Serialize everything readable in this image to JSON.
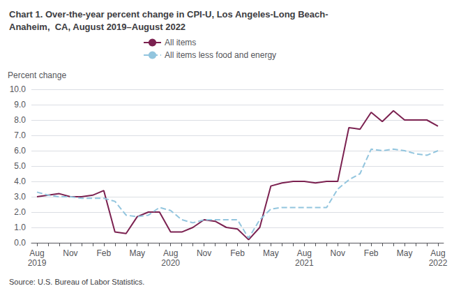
{
  "chart_data": {
    "type": "line",
    "title": "Chart 1. Over-the-year percent change in CPI-U, Los Angeles-Long Beach-\nAnaheim,  CA, August 2019–August 2022",
    "ylabel": "Percent change",
    "annotations": [
      "Source: U.S. Bureau of Labor Statistics."
    ],
    "categories": [
      "Aug\n2019",
      null,
      null,
      "Nov",
      null,
      null,
      "Feb",
      null,
      null,
      "May",
      null,
      null,
      "Aug\n2020",
      null,
      null,
      "Nov",
      null,
      null,
      "Feb",
      null,
      null,
      "May",
      null,
      null,
      "Aug\n2021",
      null,
      null,
      "Nov",
      null,
      null,
      "Feb",
      null,
      null,
      "May",
      null,
      null,
      "Aug\n2022"
    ],
    "series": [
      {
        "name": "All items",
        "color": "#7B2150",
        "line_style": "solid",
        "values": [
          3.0,
          3.1,
          3.2,
          3.0,
          3.0,
          3.1,
          3.4,
          0.7,
          0.6,
          1.7,
          2.0,
          2.0,
          0.7,
          0.7,
          1.0,
          1.5,
          1.4,
          1.0,
          0.9,
          0.2,
          1.0,
          3.7,
          3.9,
          4.0,
          4.0,
          3.9,
          4.0,
          4.0,
          7.5,
          7.4,
          8.5,
          7.9,
          8.6,
          8.0,
          8.0,
          8.0,
          7.6
        ]
      },
      {
        "name": "All items less food and energy",
        "color": "#92C5DE",
        "line_style": "dashed",
        "values": [
          3.3,
          3.1,
          3.0,
          3.0,
          2.9,
          2.9,
          2.9,
          2.7,
          1.8,
          1.7,
          1.8,
          2.3,
          2.1,
          1.5,
          1.3,
          1.5,
          1.5,
          1.5,
          1.5,
          0.3,
          1.5,
          2.2,
          2.3,
          2.3,
          2.3,
          2.3,
          2.3,
          3.5,
          4.1,
          4.5,
          6.1,
          6.0,
          6.1,
          6.0,
          5.8,
          5.7,
          6.0
        ]
      }
    ],
    "ylim": [
      0,
      10
    ],
    "yticks": [
      {
        "value": 0,
        "label": "0.0"
      },
      {
        "value": 1,
        "label": "1.0"
      },
      {
        "value": 2,
        "label": "2.0"
      },
      {
        "value": 3,
        "label": "3.0"
      },
      {
        "value": 4,
        "label": "4.0"
      },
      {
        "value": 5,
        "label": "5.0"
      },
      {
        "value": 6,
        "label": "6.0"
      },
      {
        "value": 7,
        "label": "7.0"
      },
      {
        "value": 8,
        "label": "8.0"
      },
      {
        "value": 9,
        "label": "9.0"
      },
      {
        "value": 10,
        "label": "10.0"
      }
    ],
    "grid": true,
    "legend": "top"
  }
}
